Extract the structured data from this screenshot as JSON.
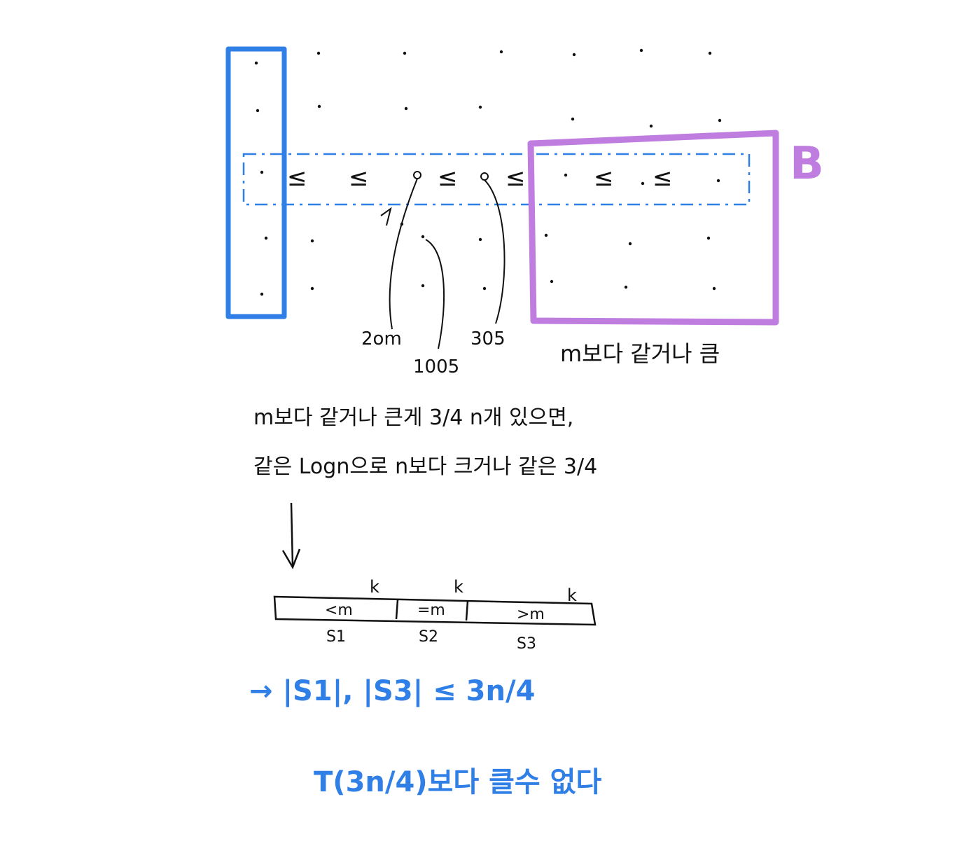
{
  "colors": {
    "ink": "#111111",
    "blue": "#2f7fe6",
    "purple": "#c07de0"
  },
  "grid": {
    "row_labels": [
      "≤",
      "≤",
      "≤",
      "≤",
      "≤",
      "≤"
    ]
  },
  "region_label": "B",
  "annotations": {
    "col_a": "2om",
    "col_b": "1005",
    "col_c": "305",
    "region_note": "m보다 같거나 큼"
  },
  "statement": {
    "line1": "m보다 같거나 큰게 3/4 n개 있으면,",
    "line2": "같은 Logn으로 n보다 크거나 같은 3/4"
  },
  "bar": {
    "segments": [
      {
        "label": "<m",
        "sub": "S1",
        "k": "k"
      },
      {
        "label": "=m",
        "sub": "S2",
        "k": "k"
      },
      {
        "label": ">m",
        "sub": "S3",
        "k": "k"
      }
    ]
  },
  "conclusion": {
    "line1": "→ |S1|, |S3| ≤ 3n/4",
    "line2": "T(3n/4)보다 클수 없다"
  }
}
